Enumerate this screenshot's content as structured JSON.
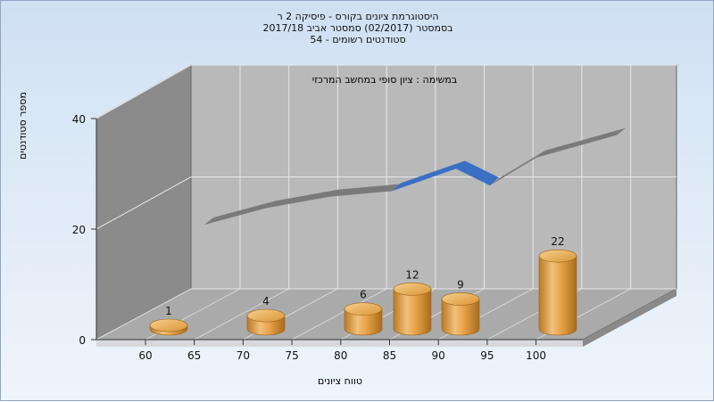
{
  "header": {
    "line1": "היסטוגרמת ציונים בקורס - פיסיקה 2 ר",
    "line2": "בסמסטר  (02/2017)  סמסטר אביב 2017/18",
    "line3": "סטודנטים רשומים - 54"
  },
  "chart_data": {
    "type": "bar",
    "title": "היסטוגרמת ציונים בקורס - פיסיקה 2 ר",
    "subtitle": "בסמסטר  (02/2017)  סמסטר אביב 2017/18",
    "task_label": "במשימה : ציון סופי במחשב המרכזי",
    "xlabel": "טווח ציונים",
    "ylabel": "מספר סטודנטים",
    "ylim": [
      0,
      40
    ],
    "yticks": [
      0,
      20,
      40
    ],
    "xticks": [
      "60",
      "65",
      "70",
      "75",
      "80",
      "85",
      "90",
      "95",
      "100"
    ],
    "categories": [
      "60",
      "70",
      "80",
      "85",
      "90",
      "100"
    ],
    "values": [
      1,
      4,
      6,
      12,
      9,
      22
    ],
    "trend_y": [
      7,
      10,
      12,
      13,
      17,
      14,
      19
    ],
    "grid": true,
    "colors": {
      "bar": "#e5a145",
      "trend_gray": "#7a7a7a",
      "trend_blue": "#3b6fc4",
      "wall": "#8b8b8b",
      "back_wall": "#b9b9b9"
    }
  }
}
